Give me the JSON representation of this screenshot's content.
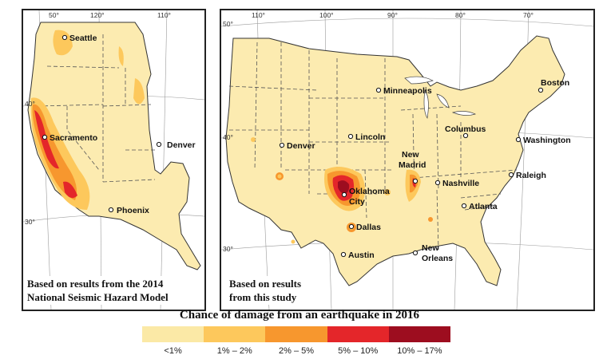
{
  "left_map": {
    "cities": [
      "Seattle",
      "Sacramento",
      "Denver",
      "Phoenix"
    ],
    "longitude_labels": [
      "50°",
      "120°",
      "110°"
    ],
    "latitude_labels": [
      "40°",
      "30°"
    ],
    "caption_line1": "Based on results from the 2014",
    "caption_line2": "National Seismic Hazard Model"
  },
  "right_map": {
    "cities": [
      "Minneapolis",
      "Boston",
      "Lincoln",
      "Columbus",
      "Denver",
      "Washington",
      "New",
      "Madrid",
      "Raleigh",
      "Oklahoma",
      "City",
      "Nashville",
      "Atlanta",
      "Dallas",
      "New",
      "Orleans",
      "Austin"
    ],
    "longitude_labels": [
      "110°",
      "100°",
      "90°",
      "80°",
      "70°"
    ],
    "latitude_labels": [
      "50°",
      "40°",
      "30°"
    ],
    "caption_line1": "Based on results",
    "caption_line2": "from this study"
  },
  "legend": {
    "title": "Chance of damage from an earthquake in 2016",
    "classes": [
      {
        "label": "<1%",
        "color": "#fbe9a6"
      },
      {
        "label": "1% – 2%",
        "color": "#fdc85c"
      },
      {
        "label": "2% – 5%",
        "color": "#f7972e"
      },
      {
        "label": "5% – 10%",
        "color": "#e4262a"
      },
      {
        "label": "10% – 17%",
        "color": "#9d0d1f"
      }
    ]
  },
  "colors": {
    "land": "#fcebb0",
    "border": "#444444",
    "water": "#ffffff",
    "low": "#fdc85c",
    "mid": "#f7972e",
    "high": "#e4262a",
    "very_high": "#9d0d1f"
  }
}
